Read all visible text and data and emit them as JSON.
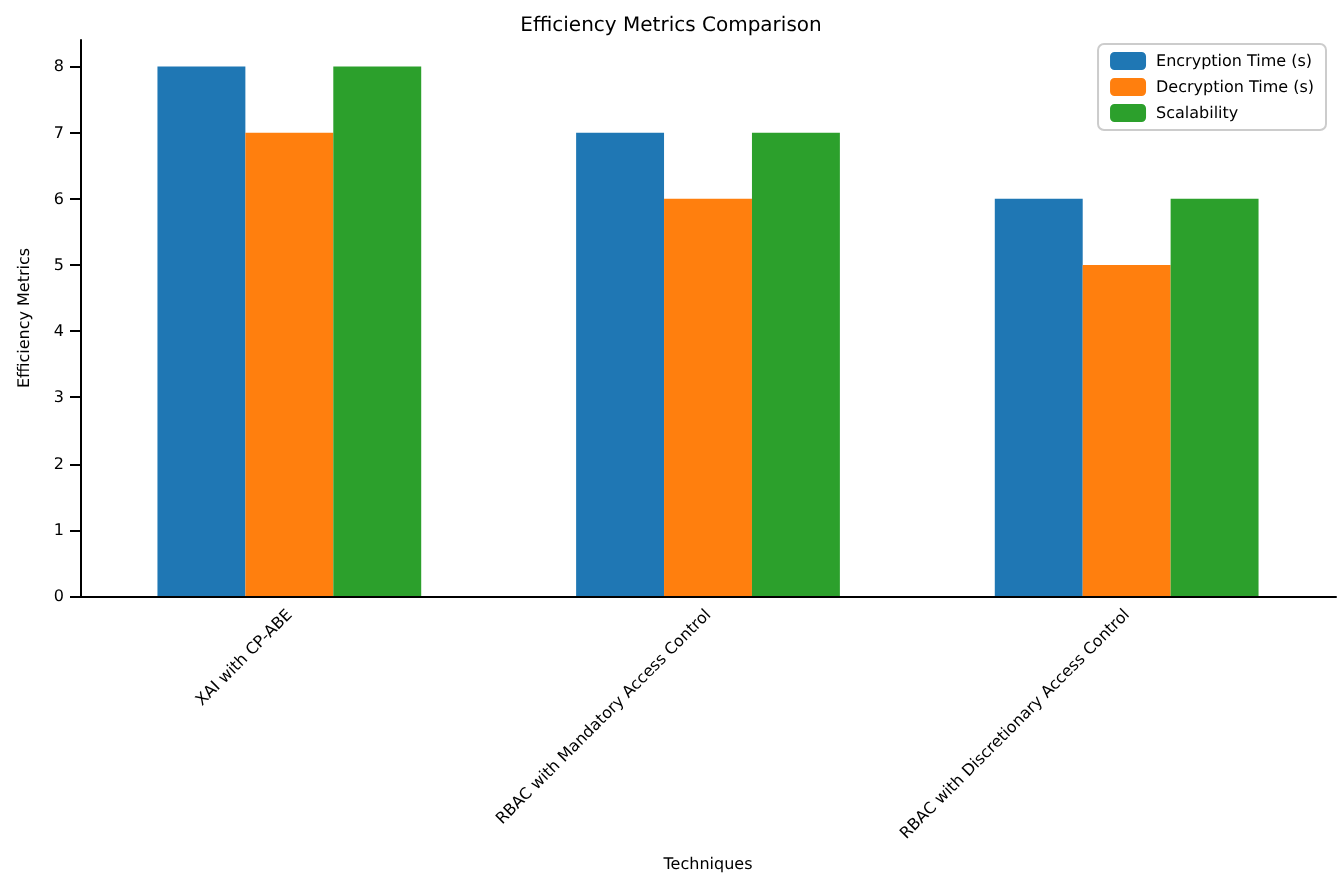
{
  "chart_data": {
    "type": "bar",
    "title": "Efficiency Metrics Comparison",
    "xlabel": "Techniques",
    "ylabel": "Efficiency Metrics",
    "categories": [
      "XAI with CP-ABE",
      "RBAC with Mandatory Access Control",
      "RBAC with Discretionary Access Control"
    ],
    "series": [
      {
        "name": "Encryption Time (s)",
        "color": "#1f77b4",
        "values": [
          8,
          7,
          6
        ]
      },
      {
        "name": "Decryption Time (s)",
        "color": "#ff7f0e",
        "values": [
          7,
          6,
          5
        ]
      },
      {
        "name": "Scalability",
        "color": "#2ca02c",
        "values": [
          8,
          7,
          6
        ]
      }
    ],
    "ylim": [
      0,
      8.4
    ],
    "yticks": [
      0,
      1,
      2,
      3,
      4,
      5,
      6,
      7,
      8
    ],
    "grid": false,
    "legend": "top right"
  }
}
